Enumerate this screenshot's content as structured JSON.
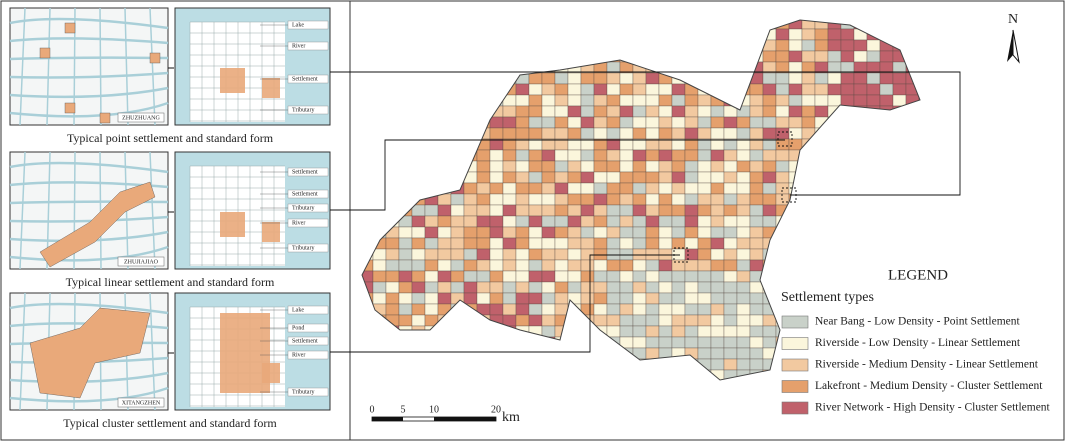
{
  "panels": [
    {
      "place": "ZHUZHUANG",
      "caption": "Typical point settlement and standard form",
      "labels": [
        "Lake",
        "River",
        "Settlement",
        "Tributary"
      ]
    },
    {
      "place": "ZHUJIAJIAO",
      "caption": "Typical linear settlement and standard form",
      "labels": [
        "Settlement",
        "Settlement",
        "Tributary",
        "River",
        "Tributary"
      ]
    },
    {
      "place": "XITANGZHEN",
      "caption": "Typical cluster settlement and standard form",
      "labels": [
        "Lake",
        "Pond",
        "Settlement",
        "River",
        "Tributary"
      ]
    }
  ],
  "north": "N",
  "scale_bar": {
    "ticks": [
      0,
      5,
      10,
      20
    ],
    "unit": "km"
  },
  "legend": {
    "title": "LEGEND",
    "subtitle": "Settlement types",
    "items": [
      {
        "label": "Near Bang - Low Density - Point Settlement",
        "color": "#c9d1c9"
      },
      {
        "label": "Riverside - Low Density - Linear Settlement",
        "color": "#fbf6dc"
      },
      {
        "label": "Riverside - Medium Density - Linear Settlement",
        "color": "#f2c9a0"
      },
      {
        "label": "Lakefront - Medium Density - Cluster Settlement",
        "color": "#e5a06c"
      },
      {
        "label": "River Network - High Density - Cluster Settlement",
        "color": "#c0616b"
      }
    ]
  }
}
